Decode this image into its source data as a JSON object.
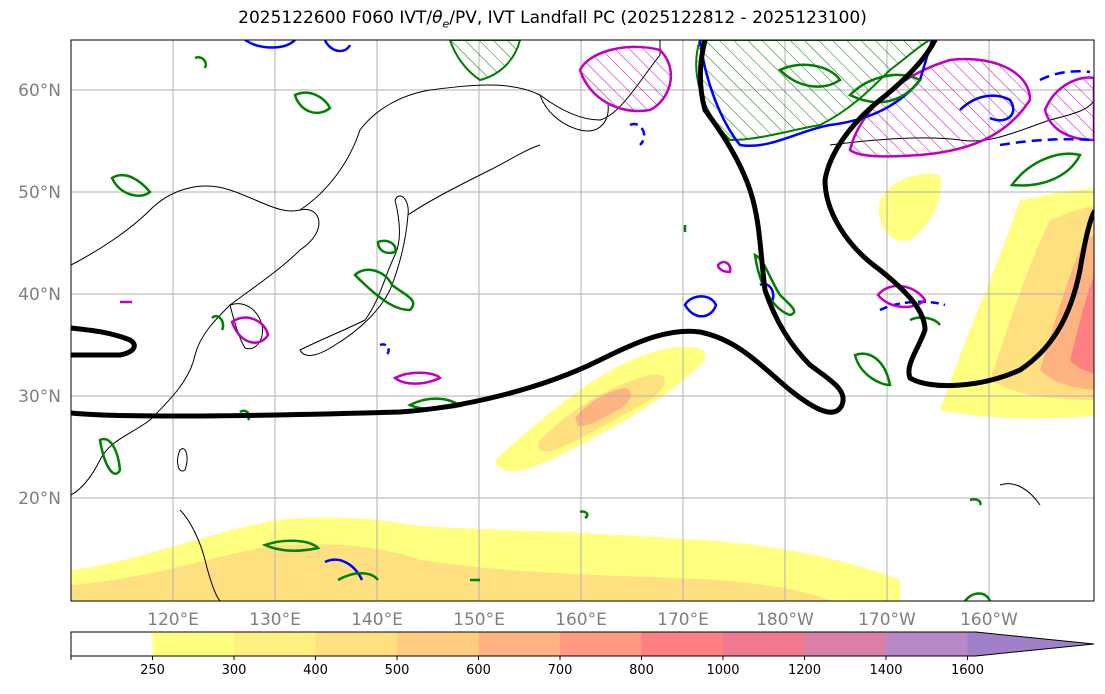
{
  "title": {
    "prefix": "2025122600 F060 IVT/",
    "theta": "θ",
    "theta_sub": "e",
    "suffix": "/PV, IVT Landfall PC (2025122812 - 2025123100)"
  },
  "lat_labels": [
    "60°N",
    "50°N",
    "40°N",
    "30°N",
    "20°N"
  ],
  "lon_labels": [
    "120°E",
    "130°E",
    "140°E",
    "150°E",
    "160°E",
    "170°E",
    "180°W",
    "170°W",
    "160°W"
  ],
  "colorbar": {
    "levels": [
      "250",
      "300",
      "400",
      "500",
      "600",
      "700",
      "800",
      "1000",
      "1200",
      "1400",
      "1600"
    ],
    "colors": [
      "#ffffff",
      "#ffff80",
      "#fff080",
      "#ffe080",
      "#ffcc80",
      "#ffb380",
      "#ff9980",
      "#ff8080",
      "#f07a90",
      "#d880a8",
      "#b888c8",
      "#a080c8"
    ],
    "extend": "max"
  },
  "colors": {
    "ivt_contour_heavy": "#000000",
    "theta_e_green": "#008000",
    "pv_blue": "#0000ff",
    "pv_magenta": "#c000c0",
    "ivt_low": "#ffff80",
    "ivt_high": "#ff8080"
  },
  "map": {
    "lon_range": [
      110,
      210
    ],
    "lat_range": [
      10,
      65
    ],
    "gridlines": true
  }
}
